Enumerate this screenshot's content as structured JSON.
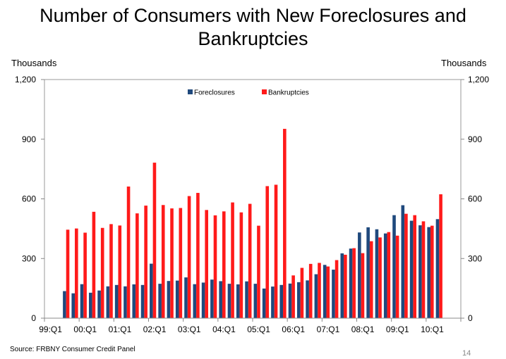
{
  "page": {
    "title": "Number of Consumers with New Foreclosures and Bankruptcies",
    "source": "Source: FRBNY Consumer Credit Panel",
    "page_number": "14"
  },
  "chart_data": {
    "type": "bar",
    "title": "Number of Consumers with New Foreclosures and Bankruptcies",
    "ylabel_left": "Thousands",
    "ylabel_right": "Thousands",
    "ylim": [
      0,
      1200
    ],
    "yticks": [
      "0",
      "300",
      "600",
      "900",
      "1,200"
    ],
    "ytick_values": [
      0,
      300,
      600,
      900,
      1200
    ],
    "xtick_labels": [
      "99:Q1",
      "00:Q1",
      "01:Q1",
      "02:Q1",
      "03:Q1",
      "04:Q1",
      "05:Q1",
      "06:Q1",
      "07:Q1",
      "08:Q1",
      "09:Q1",
      "10:Q1"
    ],
    "categories": [
      "99:Q3",
      "99:Q4",
      "00:Q1",
      "00:Q2",
      "00:Q3",
      "00:Q4",
      "01:Q1",
      "01:Q2",
      "01:Q3",
      "01:Q4",
      "02:Q1",
      "02:Q2",
      "02:Q3",
      "02:Q4",
      "03:Q1",
      "03:Q2",
      "03:Q3",
      "03:Q4",
      "04:Q1",
      "04:Q2",
      "04:Q3",
      "04:Q4",
      "05:Q1",
      "05:Q2",
      "05:Q3",
      "05:Q4",
      "06:Q1",
      "06:Q2",
      "06:Q3",
      "06:Q4",
      "07:Q1",
      "07:Q2",
      "07:Q3",
      "07:Q4",
      "08:Q1",
      "08:Q2",
      "08:Q3",
      "08:Q4",
      "09:Q1",
      "09:Q2",
      "09:Q3",
      "09:Q4",
      "10:Q1",
      "10:Q2"
    ],
    "legend_position": "top-center",
    "grid": false,
    "series": [
      {
        "name": "Foreclosures",
        "color": "#1F497D",
        "values": [
          136,
          125,
          171,
          128,
          139,
          160,
          167,
          160,
          170,
          167,
          274,
          173,
          187,
          189,
          205,
          171,
          179,
          194,
          186,
          173,
          170,
          185,
          173,
          149,
          159,
          167,
          174,
          181,
          190,
          221,
          268,
          244,
          326,
          350,
          431,
          457,
          447,
          426,
          518,
          568,
          490,
          467,
          458,
          498
        ]
      },
      {
        "name": "Bankruptcies",
        "color": "#FF1A1A",
        "values": [
          445,
          451,
          430,
          535,
          454,
          473,
          466,
          662,
          527,
          566,
          782,
          569,
          552,
          554,
          614,
          630,
          544,
          517,
          537,
          582,
          532,
          575,
          465,
          664,
          671,
          952,
          215,
          253,
          273,
          278,
          260,
          292,
          319,
          352,
          327,
          387,
          406,
          433,
          415,
          525,
          518,
          487,
          465,
          623
        ]
      }
    ]
  }
}
